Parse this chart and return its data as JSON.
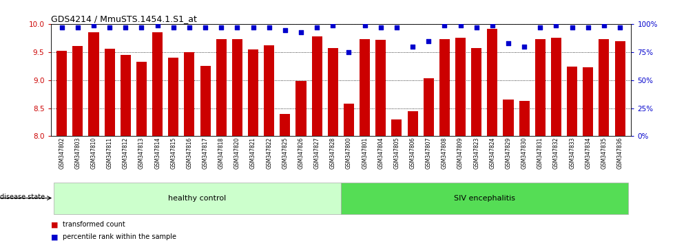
{
  "title": "GDS4214 / MmuSTS.1454.1.S1_at",
  "samples": [
    "GSM347802",
    "GSM347803",
    "GSM347810",
    "GSM347811",
    "GSM347812",
    "GSM347813",
    "GSM347814",
    "GSM347815",
    "GSM347816",
    "GSM347817",
    "GSM347818",
    "GSM347820",
    "GSM347821",
    "GSM347822",
    "GSM347825",
    "GSM347826",
    "GSM347827",
    "GSM347828",
    "GSM347800",
    "GSM347801",
    "GSM347804",
    "GSM347805",
    "GSM347806",
    "GSM347807",
    "GSM347808",
    "GSM347809",
    "GSM347823",
    "GSM347824",
    "GSM347829",
    "GSM347830",
    "GSM347831",
    "GSM347832",
    "GSM347833",
    "GSM347834",
    "GSM347835",
    "GSM347836"
  ],
  "transformed_count": [
    9.52,
    9.61,
    9.86,
    9.56,
    9.45,
    9.33,
    9.86,
    9.4,
    9.5,
    9.25,
    9.74,
    9.74,
    9.55,
    9.63,
    8.4,
    8.99,
    9.78,
    9.57,
    8.58,
    9.73,
    9.72,
    8.3,
    8.45,
    9.04,
    9.73,
    9.76,
    9.57,
    9.92,
    8.65,
    8.63,
    9.74,
    9.76,
    9.24,
    9.23,
    9.74,
    9.7
  ],
  "percentile_rank": [
    97,
    97,
    99,
    97,
    97,
    97,
    99,
    97,
    97,
    97,
    97,
    97,
    97,
    97,
    95,
    93,
    97,
    99,
    75,
    99,
    97,
    97,
    80,
    85,
    99,
    99,
    97,
    99,
    83,
    80,
    97,
    99,
    97,
    97,
    99,
    97
  ],
  "healthy_count": 18,
  "siv_count": 18,
  "bar_color": "#CC0000",
  "dot_color": "#0000CC",
  "ymin": 8.0,
  "ymax": 10.0,
  "ylim_right": [
    0,
    100
  ],
  "yticks_left": [
    8.0,
    8.5,
    9.0,
    9.5,
    10.0
  ],
  "yticks_right": [
    0,
    25,
    50,
    75,
    100
  ],
  "healthy_label": "healthy control",
  "siv_label": "SIV encephalitis",
  "disease_state_label": "disease state",
  "legend_bar_label": "transformed count",
  "legend_dot_label": "percentile rank within the sample",
  "healthy_bg": "#ccffcc",
  "siv_bg": "#55dd55",
  "bar_width": 0.65
}
